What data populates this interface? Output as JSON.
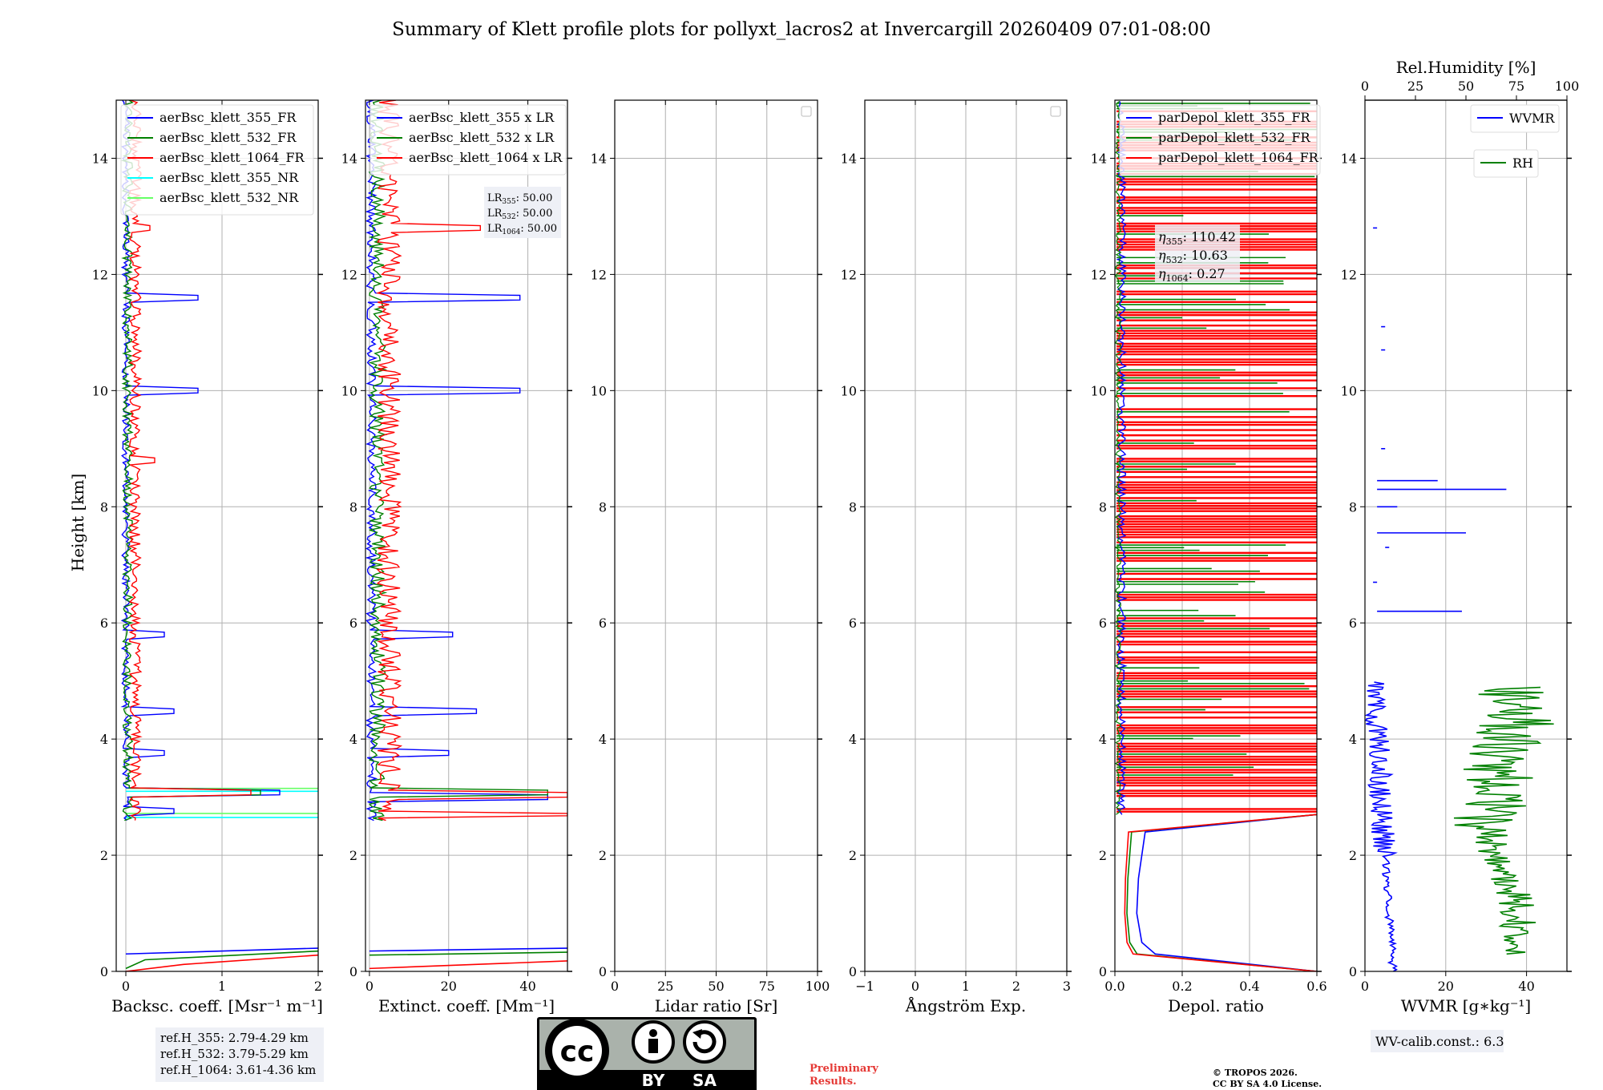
{
  "title": "Summary of Klett profile plots for pollyxt_lacros2 at Invercargill 20260409 07:01-08:00",
  "ylabel": "Height [km]",
  "colors": {
    "c355": "#0000ff",
    "c532": "#008000",
    "c1064": "#ff0000",
    "c355nr": "#00ffff",
    "c532nr": "#66ff66"
  },
  "panels": [
    {
      "id": "bsc",
      "xlabel": "Backsc. coeff. [Msr$^{-1}$ m$^{-1}$]",
      "xlabel_text": "Backsc. coeff. [Msr⁻¹ m⁻¹]",
      "xlim": [
        -0.1,
        2
      ],
      "xticks": [
        "0",
        "1",
        "2"
      ],
      "xtick_vals": [
        0,
        1,
        2
      ],
      "legend": [
        "aerBsc_klett_355_FR",
        "aerBsc_klett_532_FR",
        "aerBsc_klett_1064_FR",
        "aerBsc_klett_355_NR",
        "aerBsc_klett_532_NR"
      ]
    },
    {
      "id": "ext",
      "xlabel_text": "Extinct. coeff. [Mm⁻¹]",
      "xlim": [
        -1,
        50
      ],
      "xticks": [
        "0",
        "20",
        "40"
      ],
      "xtick_vals": [
        0,
        20,
        40
      ],
      "legend": [
        "aerBsc_klett_355 x LR",
        "aerBsc_klett_532 x LR",
        "aerBsc_klett_1064 x LR"
      ],
      "lr_box": {
        "l355": "LR",
        "s355": "355",
        "v355": ": 50.00",
        "l532": "LR",
        "s532": "532",
        "v532": ": 50.00",
        "l1064": "LR",
        "s1064": "1064",
        "v1064": ": 50.00"
      }
    },
    {
      "id": "lr",
      "xlabel_text": "Lidar ratio [Sr]",
      "xlim": [
        0,
        100
      ],
      "xticks": [
        "0",
        "25",
        "50",
        "75",
        "100"
      ],
      "xtick_vals": [
        0,
        25,
        50,
        75,
        100
      ]
    },
    {
      "id": "ang",
      "xlabel_text": "Ångström Exp.",
      "xlim": [
        -1,
        3
      ],
      "xticks": [
        "−1",
        "0",
        "1",
        "2",
        "3"
      ],
      "xtick_vals": [
        -1,
        0,
        1,
        2,
        3
      ]
    },
    {
      "id": "dep",
      "xlabel_text": "Depol. ratio",
      "xlim": [
        0,
        0.6
      ],
      "xticks": [
        "0.0",
        "0.2",
        "0.4",
        "0.6"
      ],
      "xtick_vals": [
        0,
        0.2,
        0.4,
        0.6
      ],
      "legend": [
        "parDepol_klett_355_FR",
        "parDepol_klett_532_FR",
        "parDepol_klett_1064_FR"
      ],
      "eta": {
        "s355": "355",
        "v355": ": 110.42",
        "s532": "532",
        "v532": ": 10.63",
        "s1064": "1064",
        "v1064": ": 0.27"
      }
    },
    {
      "id": "wv",
      "xlabel_text": "WVMR [g∗kg⁻¹]",
      "xlim": [
        0,
        50
      ],
      "xticks": [
        "0",
        "20",
        "40"
      ],
      "xtick_vals": [
        0,
        20,
        40
      ],
      "top_label": "Rel.Humidity [%]",
      "top_xticks": [
        "0",
        "25",
        "50",
        "75",
        "100"
      ],
      "top_xtick_vals": [
        0,
        25,
        50,
        75,
        100
      ],
      "legend_wvmr": "WVMR",
      "legend_rh": "RH"
    }
  ],
  "yticks": [
    "0",
    "2",
    "4",
    "6",
    "8",
    "10",
    "12",
    "14"
  ],
  "ytick_vals": [
    0,
    2,
    4,
    6,
    8,
    10,
    12,
    14
  ],
  "ylim": [
    0,
    15
  ],
  "ref_box": [
    "ref.H_355: 2.79-4.29 km",
    "ref.H_532: 3.79-5.29 km",
    "ref.H_1064: 3.61-4.36 km"
  ],
  "wv_calib": "WV-calib.const.: 6.3",
  "license_badge": {
    "cc": "cc",
    "by": "BY",
    "sa": "SA"
  },
  "preliminary": [
    "Preliminary",
    "Results."
  ],
  "copyright": [
    "© TROPOS 2026.",
    "CC BY SA 4.0 License."
  ],
  "chart_data": {
    "type": "line",
    "title": "Summary of Klett profile plots for pollyxt_lacros2 at Invercargill 20260409 07:01-08:00",
    "ylabel": "Height [km]",
    "ylim": [
      0,
      15
    ],
    "panels": [
      {
        "xlabel": "Backsc. coeff. [Msr⁻¹ m⁻¹]",
        "xlim": [
          -0.1,
          2
        ],
        "series": [
          {
            "name": "aerBsc_klett_355_FR",
            "peaks": [
              [
                0.1,
                2.0
              ],
              [
                0.4,
                0.0
              ],
              [
                2.75,
                0.5
              ],
              [
                3.1,
                1.6
              ],
              [
                3.75,
                0.4
              ],
              [
                4.5,
                0.5
              ],
              [
                5.8,
                0.4
              ],
              [
                10.0,
                0.75
              ],
              [
                11.6,
                0.75
              ]
            ]
          },
          {
            "name": "aerBsc_klett_532_FR",
            "peaks": [
              [
                0.1,
                2.0
              ],
              [
                3.1,
                1.4
              ],
              [
                4.2,
                0.05
              ],
              [
                9.0,
                0.0
              ]
            ]
          },
          {
            "name": "aerBsc_klett_1064_FR",
            "peaks": [
              [
                0.1,
                2.0
              ],
              [
                3.1,
                1.3
              ],
              [
                8.8,
                0.3
              ],
              [
                12.8,
                0.25
              ]
            ]
          },
          {
            "name": "aerBsc_klett_355_NR",
            "peaks": [
              [
                2.65,
                2.0
              ],
              [
                3.1,
                2.0
              ]
            ]
          },
          {
            "name": "aerBsc_klett_532_NR",
            "peaks": [
              [
                2.7,
                2.0
              ],
              [
                3.15,
                2.0
              ]
            ]
          }
        ]
      },
      {
        "xlabel": "Extinct. coeff. [Mm⁻¹]",
        "xlim": [
          -1,
          50
        ],
        "series": [
          {
            "name": "aerBsc_klett_355 x LR",
            "peaks": [
              [
                3.0,
                45
              ],
              [
                3.75,
                20
              ],
              [
                4.5,
                27
              ],
              [
                5.8,
                21
              ],
              [
                10.0,
                38
              ],
              [
                11.6,
                38
              ]
            ]
          },
          {
            "name": "aerBsc_klett_532 x LR",
            "peaks": [
              [
                3.1,
                45
              ]
            ]
          },
          {
            "name": "aerBsc_klett_1064 x LR",
            "peaks": [
              [
                3.05,
                50
              ],
              [
                12.8,
                28
              ]
            ]
          }
        ]
      },
      {
        "xlabel": "Lidar ratio [Sr]",
        "xlim": [
          0,
          100
        ],
        "series": []
      },
      {
        "xlabel": "Ångström Exp.",
        "xlim": [
          -1,
          3
        ],
        "series": []
      },
      {
        "xlabel": "Depol. ratio",
        "xlim": [
          0,
          0.6
        ],
        "series": [
          {
            "name": "parDepol_klett_355_FR",
            "values_below_2_7km": [
              [
                0.5,
                0.08
              ],
              [
                1.0,
                0.06
              ],
              [
                2.0,
                0.08
              ],
              [
                2.5,
                0.09
              ]
            ]
          },
          {
            "name": "parDepol_klett_532_FR",
            "values_below_2_7km": [
              [
                0.5,
                0.04
              ],
              [
                1.0,
                0.045
              ],
              [
                2.0,
                0.06
              ],
              [
                2.5,
                0.07
              ]
            ]
          },
          {
            "name": "parDepol_klett_1064_FR",
            "values_below_2_7km": [
              [
                0.5,
                0.03
              ],
              [
                1.0,
                0.035
              ],
              [
                2.0,
                0.045
              ],
              [
                2.5,
                0.05
              ]
            ]
          }
        ]
      },
      {
        "xlabel": "WVMR [g∗kg⁻¹]",
        "xlim": [
          0,
          50
        ],
        "top_xlabel": "Rel.Humidity [%]",
        "top_xlim": [
          0,
          100
        ],
        "series": [
          {
            "name": "WVMR",
            "values": [
              [
                0.0,
                7
              ],
              [
                1.0,
                6
              ],
              [
                2.0,
                3
              ],
              [
                3.0,
                2
              ],
              [
                4.0,
                3
              ],
              [
                5.0,
                4
              ]
            ]
          },
          {
            "name": "RH",
            "values": [
              [
                0.5,
                70
              ],
              [
                1.5,
                72
              ],
              [
                2.0,
                75
              ],
              [
                3.0,
                65
              ],
              [
                4.0,
                60
              ],
              [
                4.9,
                70
              ]
            ]
          }
        ]
      }
    ]
  }
}
